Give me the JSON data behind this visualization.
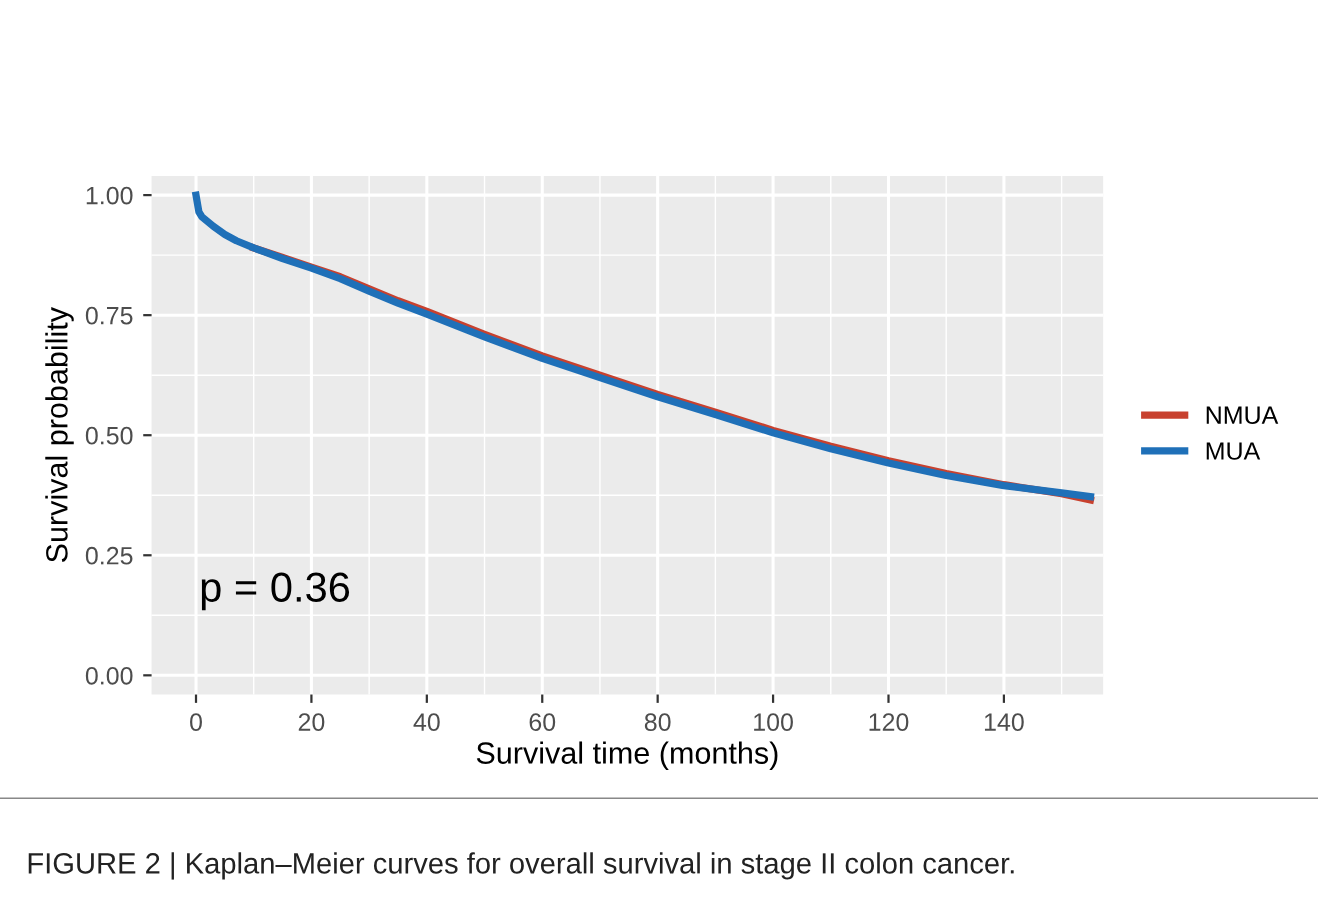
{
  "chart_data": {
    "type": "line",
    "xlabel": "Survival time (months)",
    "ylabel": "Survival probability",
    "x": [
      0,
      0.5,
      1,
      2,
      3,
      5,
      7,
      10,
      15,
      20,
      25,
      30,
      35,
      40,
      50,
      60,
      70,
      80,
      90,
      100,
      110,
      120,
      130,
      140,
      150,
      155
    ],
    "series": [
      {
        "name": "NMUA",
        "color": "#c8412e",
        "values": [
          null,
          null,
          null,
          null,
          null,
          null,
          null,
          0.89,
          0.87,
          0.85,
          0.83,
          0.805,
          0.78,
          0.758,
          0.71,
          0.665,
          0.625,
          0.585,
          0.548,
          0.51,
          0.477,
          0.447,
          0.42,
          0.397,
          0.378,
          0.365
        ]
      },
      {
        "name": "MUA",
        "color": "#1f70b8",
        "values": [
          1.0,
          0.965,
          0.955,
          0.945,
          0.935,
          0.918,
          0.905,
          0.89,
          0.868,
          0.848,
          0.826,
          0.8,
          0.775,
          0.752,
          0.705,
          0.66,
          0.62,
          0.58,
          0.543,
          0.505,
          0.472,
          0.442,
          0.416,
          0.395,
          0.38,
          0.372
        ]
      }
    ],
    "xlim": [
      -7.7,
      157.2
    ],
    "xticks": [
      0,
      20,
      40,
      60,
      80,
      100,
      120,
      140
    ],
    "ylim": [
      -0.04,
      1.04
    ],
    "yticks": [
      {
        "value": 0,
        "label": "0.00"
      },
      {
        "value": 0.25,
        "label": "0.25"
      },
      {
        "value": 0.5,
        "label": "0.50"
      },
      {
        "value": 0.75,
        "label": "0.75"
      },
      {
        "value": 1,
        "label": "1.00"
      }
    ],
    "grid": true,
    "legend": "right",
    "annotations": [
      "p = 0.36",
      "FIGURE 2 | Kaplan–Meier curves for overall survival in stage II colon cancer."
    ]
  }
}
